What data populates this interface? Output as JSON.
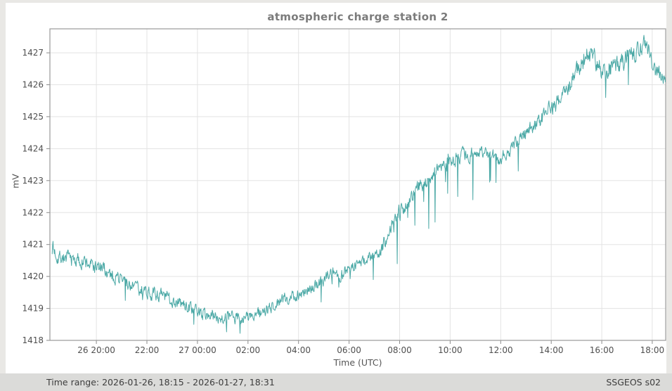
{
  "page": {
    "background_color": "#e9e8e5",
    "figure_background_color": "#ffffff"
  },
  "footer": {
    "time_range_label": "Time range: 2026-01-26, 18:15 - 2026-01-27, 18:31",
    "station_label": "SSGEOS s02",
    "background_color": "#dbdbd9"
  },
  "chart_data": {
    "type": "line",
    "title": "atmospheric charge station 2",
    "xlabel": "Time (UTC)",
    "ylabel": "mV",
    "line_color": "#4aa8a5",
    "grid_color": "#e3e3e3",
    "axis_color": "#999999",
    "tick_color": "#8a8a8a",
    "grid": true,
    "legend": "none",
    "ylim": [
      1418,
      1427.75
    ],
    "yticks": [
      1418,
      1419,
      1420,
      1421,
      1422,
      1423,
      1424,
      1425,
      1426,
      1427
    ],
    "time_domain_hours": [
      18.16,
      42.53
    ],
    "series_time_range_hours": [
      18.25,
      42.517
    ],
    "xticks": [
      {
        "hour": 20,
        "label": "26 20:00"
      },
      {
        "hour": 22,
        "label": "22:00"
      },
      {
        "hour": 24,
        "label": "27 00:00"
      },
      {
        "hour": 26,
        "label": "02:00"
      },
      {
        "hour": 28,
        "label": "04:00"
      },
      {
        "hour": 30,
        "label": "06:00"
      },
      {
        "hour": 32,
        "label": "08:00"
      },
      {
        "hour": 34,
        "label": "10:00"
      },
      {
        "hour": 36,
        "label": "12:00"
      },
      {
        "hour": 38,
        "label": "14:00"
      },
      {
        "hour": 40,
        "label": "16:00"
      },
      {
        "hour": 42,
        "label": "18:00"
      }
    ],
    "n_points": 1460,
    "seed": 7,
    "noise_ar": 0.5,
    "noise_amp_schedule": [
      [
        18.25,
        0.17
      ],
      [
        24.0,
        0.14
      ],
      [
        28.0,
        0.13
      ],
      [
        31.0,
        0.13
      ],
      [
        32.0,
        0.16
      ],
      [
        36.0,
        0.14
      ],
      [
        37.5,
        0.16
      ],
      [
        38.5,
        0.2
      ],
      [
        39.5,
        0.22
      ],
      [
        41.0,
        0.2
      ],
      [
        42.52,
        0.2
      ]
    ],
    "trend_anchors": [
      [
        18.25,
        1420.9
      ],
      [
        18.45,
        1420.65
      ],
      [
        19.0,
        1420.55
      ],
      [
        19.5,
        1420.45
      ],
      [
        20.0,
        1420.3
      ],
      [
        20.4,
        1420.15
      ],
      [
        20.9,
        1419.95
      ],
      [
        21.3,
        1419.75
      ],
      [
        21.8,
        1419.6
      ],
      [
        22.3,
        1419.45
      ],
      [
        22.8,
        1419.35
      ],
      [
        23.3,
        1419.15
      ],
      [
        23.8,
        1419.0
      ],
      [
        24.2,
        1418.85
      ],
      [
        24.7,
        1418.75
      ],
      [
        25.2,
        1418.7
      ],
      [
        25.8,
        1418.7
      ],
      [
        26.3,
        1418.8
      ],
      [
        26.8,
        1418.95
      ],
      [
        27.3,
        1419.25
      ],
      [
        27.7,
        1419.35
      ],
      [
        28.0,
        1419.45
      ],
      [
        28.4,
        1419.6
      ],
      [
        28.7,
        1419.7
      ],
      [
        29.0,
        1419.9
      ],
      [
        29.35,
        1420.15
      ],
      [
        29.65,
        1420.05
      ],
      [
        29.95,
        1420.2
      ],
      [
        30.3,
        1420.4
      ],
      [
        30.6,
        1420.5
      ],
      [
        30.9,
        1420.6
      ],
      [
        31.2,
        1420.7
      ],
      [
        31.5,
        1421.25
      ],
      [
        31.75,
        1421.8
      ],
      [
        32.1,
        1422.1
      ],
      [
        32.45,
        1422.45
      ],
      [
        32.8,
        1422.8
      ],
      [
        33.2,
        1423.1
      ],
      [
        33.6,
        1423.35
      ],
      [
        34.0,
        1423.6
      ],
      [
        34.5,
        1423.75
      ],
      [
        35.0,
        1423.85
      ],
      [
        35.4,
        1423.95
      ],
      [
        35.9,
        1423.65
      ],
      [
        36.2,
        1423.8
      ],
      [
        36.6,
        1424.2
      ],
      [
        37.0,
        1424.5
      ],
      [
        37.4,
        1424.8
      ],
      [
        37.7,
        1425.0
      ],
      [
        38.0,
        1425.25
      ],
      [
        38.4,
        1425.6
      ],
      [
        38.8,
        1426.1
      ],
      [
        39.1,
        1426.55
      ],
      [
        39.45,
        1426.95
      ],
      [
        39.7,
        1427.0
      ],
      [
        39.9,
        1426.5
      ],
      [
        40.1,
        1426.45
      ],
      [
        40.5,
        1426.55
      ],
      [
        40.8,
        1426.7
      ],
      [
        41.1,
        1427.0
      ],
      [
        41.3,
        1426.9
      ],
      [
        41.55,
        1427.1
      ],
      [
        41.75,
        1427.25
      ],
      [
        41.95,
        1426.9
      ],
      [
        42.1,
        1426.4
      ],
      [
        42.3,
        1426.3
      ],
      [
        42.517,
        1426.2
      ]
    ],
    "spikes": [
      [
        18.28,
        1421.1
      ],
      [
        21.15,
        1419.25
      ],
      [
        23.85,
        1418.5
      ],
      [
        25.68,
        1418.22
      ],
      [
        28.9,
        1419.2
      ],
      [
        30.95,
        1419.9
      ],
      [
        31.9,
        1420.4
      ],
      [
        32.6,
        1421.6
      ],
      [
        33.15,
        1421.5
      ],
      [
        33.4,
        1421.7
      ],
      [
        33.9,
        1422.6
      ],
      [
        34.3,
        1422.5
      ],
      [
        34.9,
        1422.4
      ],
      [
        35.6,
        1423.0
      ],
      [
        36.7,
        1423.3
      ],
      [
        40.15,
        1425.6
      ],
      [
        41.05,
        1426.0
      ]
    ],
    "random_spike_region": {
      "from": 31.5,
      "to": 36.8,
      "probability": 0.013,
      "min_depth": 0.25,
      "max_depth": 0.9
    },
    "global_spike": {
      "probability": 0.003,
      "min_depth": 0.15,
      "max_depth": 0.45
    }
  }
}
